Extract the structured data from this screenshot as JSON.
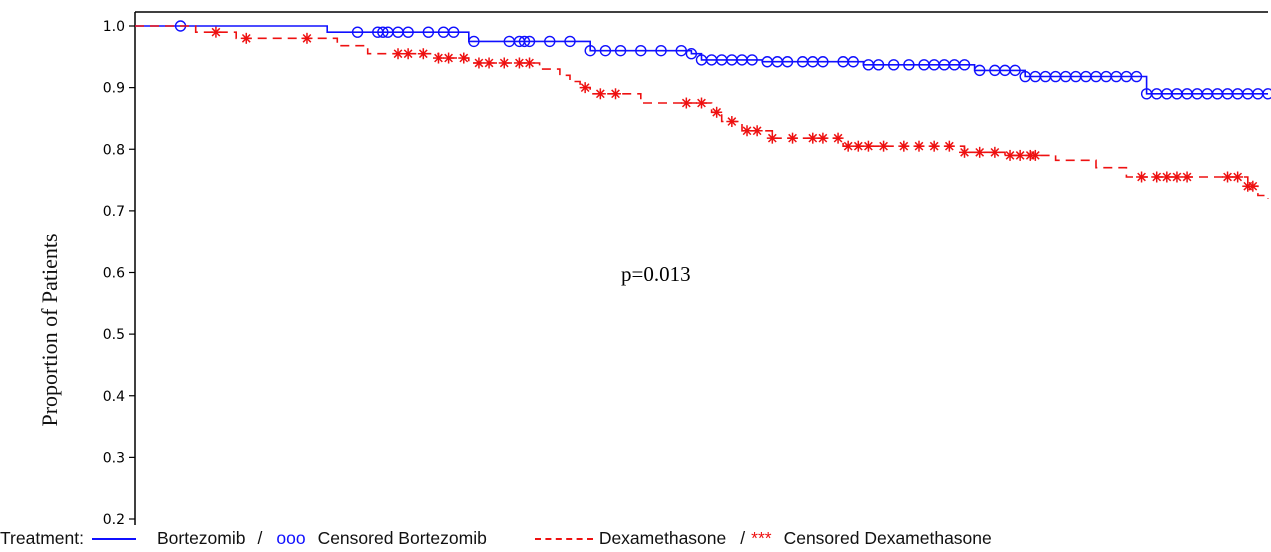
{
  "chart_data": {
    "type": "line",
    "ylabel": "Proportion of Patients",
    "annotation": "p=0.013",
    "ylim": [
      0.2,
      1.0
    ],
    "yticks": [
      "0.2",
      "0.3",
      "0.4",
      "0.5",
      "0.6",
      "0.7",
      "0.8",
      "0.9",
      "1.0"
    ],
    "grid": false,
    "series": [
      {
        "name": "Bortezomib",
        "color": "#1010ff",
        "step": [
          [
            0,
            1.0
          ],
          [
            15,
            1.0
          ],
          [
            19,
            0.99
          ],
          [
            29,
            0.99
          ],
          [
            33,
            0.975
          ],
          [
            41,
            0.975
          ],
          [
            45,
            0.96
          ],
          [
            52,
            0.96
          ],
          [
            55,
            0.955
          ],
          [
            56,
            0.945
          ],
          [
            60,
            0.945
          ],
          [
            62,
            0.942
          ],
          [
            68,
            0.942
          ],
          [
            72,
            0.937
          ],
          [
            81,
            0.937
          ],
          [
            83,
            0.928
          ],
          [
            86,
            0.928
          ],
          [
            88,
            0.918
          ],
          [
            98,
            0.918
          ],
          [
            100,
            0.89
          ],
          [
            112,
            0.89
          ]
        ],
        "censored": [
          4.5,
          22,
          24,
          24.5,
          25,
          26,
          27,
          29,
          30.5,
          31.5,
          33.5,
          37,
          38,
          38.5,
          39,
          41,
          43,
          45,
          46.5,
          48,
          50,
          52,
          54,
          55,
          56,
          57,
          58,
          59,
          60,
          61,
          62.5,
          63.5,
          64.5,
          66,
          67,
          68,
          70,
          71,
          72.5,
          73.5,
          75,
          76.5,
          78,
          79,
          80,
          81,
          82,
          83.5,
          85,
          86,
          87,
          88,
          89,
          90,
          91,
          92,
          93,
          94,
          95,
          96,
          97,
          98,
          99,
          100,
          101,
          102,
          103,
          104,
          105,
          106,
          107,
          108,
          109,
          110,
          111,
          112
        ]
      },
      {
        "name": "Dexamethasone",
        "color": "#ee1111",
        "step": [
          [
            0,
            1.0
          ],
          [
            6,
            0.99
          ],
          [
            10,
            0.98
          ],
          [
            19,
            0.98
          ],
          [
            20,
            0.968
          ],
          [
            23,
            0.955
          ],
          [
            29,
            0.955
          ],
          [
            30,
            0.948
          ],
          [
            33,
            0.94
          ],
          [
            38,
            0.94
          ],
          [
            40,
            0.93
          ],
          [
            42,
            0.92
          ],
          [
            43,
            0.91
          ],
          [
            44,
            0.9
          ],
          [
            45,
            0.89
          ],
          [
            48,
            0.89
          ],
          [
            50,
            0.875
          ],
          [
            55,
            0.875
          ],
          [
            57,
            0.86
          ],
          [
            58,
            0.845
          ],
          [
            60,
            0.83
          ],
          [
            63,
            0.818
          ],
          [
            70,
            0.805
          ],
          [
            80,
            0.805
          ],
          [
            82,
            0.795
          ],
          [
            86,
            0.79
          ],
          [
            91,
            0.782
          ],
          [
            95,
            0.77
          ],
          [
            98,
            0.755
          ],
          [
            108,
            0.755
          ],
          [
            110,
            0.74
          ],
          [
            111,
            0.725
          ],
          [
            112,
            0.72
          ]
        ],
        "censored": [
          8,
          11,
          17,
          26,
          27,
          28.5,
          30,
          31,
          32.5,
          34,
          35,
          36.5,
          38,
          39,
          44.5,
          46,
          47.5,
          54.5,
          56,
          57.5,
          59,
          60.5,
          61.5,
          63,
          65,
          67,
          68,
          69.5,
          70.5,
          71.5,
          72.5,
          74,
          76,
          77.5,
          79,
          80.5,
          82,
          83.5,
          85,
          86.5,
          87.5,
          88.5,
          89,
          99.5,
          101,
          102,
          103,
          104,
          108,
          109,
          110,
          110.5
        ]
      }
    ]
  },
  "legend": {
    "prefix": "Treatment:",
    "bortezomib": "Bortezomib",
    "separator": "/",
    "blue_symbol": "ooo",
    "censored_bortezomib": "Censored Bortezomib",
    "dexamethasone": "Dexamethasone",
    "red_symbol": "***",
    "censored_dexamethasone": "Censored Dexamethasone"
  }
}
